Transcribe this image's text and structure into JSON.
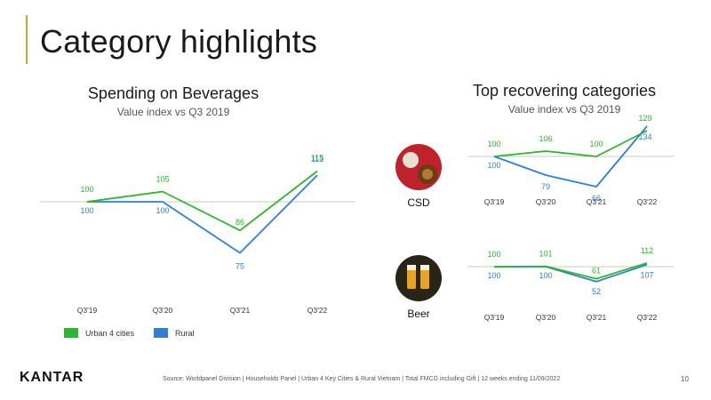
{
  "page": {
    "title": "Category highlights",
    "logo": "KANTAR",
    "source": "Source:  Worldpanel  Division  | Households  Panel | Urban   4 Key Cities & Rural  Vietnam | Total FMCG including  Gift | 12 weeks ending  11/09/2022",
    "page_number": "10"
  },
  "left": {
    "title": "Spending on Beverages",
    "subtitle": "Value index vs Q3 2019"
  },
  "right": {
    "title": "Top recovering categories",
    "subtitle": "Value index vs Q3 2019"
  },
  "legend": [
    {
      "label": "Urban 4 cities",
      "color": "#2db52d"
    },
    {
      "label": "Rural",
      "color": "#2f7fd9"
    }
  ],
  "categories_labels": {
    "csd": "CSD",
    "beer": "Beer"
  },
  "chart_data": [
    {
      "type": "line",
      "title": "Spending on Beverages",
      "subtitle": "Value index vs Q3 2019",
      "categories": [
        "Q3'19",
        "Q3'20",
        "Q3'21",
        "Q3'22"
      ],
      "series": [
        {
          "name": "Urban 4 cities",
          "color": "#2db52d",
          "values": [
            100,
            105,
            86,
            115
          ]
        },
        {
          "name": "Rural",
          "color": "#2f7fd9",
          "values": [
            100,
            100,
            75,
            113
          ]
        }
      ],
      "reference_line": 100,
      "ylim": [
        60,
        125
      ]
    },
    {
      "type": "line",
      "title": "CSD",
      "categories": [
        "Q3'19",
        "Q3'20",
        "Q3'21",
        "Q3'22"
      ],
      "series": [
        {
          "name": "Urban 4 cities",
          "color": "#2db52d",
          "values": [
            100,
            106,
            100,
            129
          ]
        },
        {
          "name": "Rural",
          "color": "#2f7fd9",
          "values": [
            100,
            79,
            66,
            134
          ]
        }
      ],
      "reference_line": 100
    },
    {
      "type": "line",
      "title": "Beer",
      "categories": [
        "Q3'19",
        "Q3'20",
        "Q3'21",
        "Q3'22"
      ],
      "series": [
        {
          "name": "Urban 4 cities",
          "color": "#2db52d",
          "values": [
            100,
            101,
            61,
            112
          ]
        },
        {
          "name": "Rural",
          "color": "#2f7fd9",
          "values": [
            100,
            100,
            52,
            107
          ]
        }
      ],
      "reference_line": 100
    }
  ]
}
